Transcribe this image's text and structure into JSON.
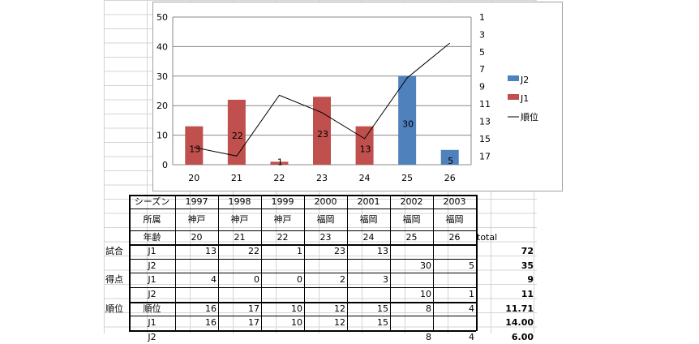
{
  "chart_data": {
    "type": "bar",
    "categories": [
      "20",
      "21",
      "22",
      "23",
      "24",
      "25",
      "26"
    ],
    "series": [
      {
        "name": "J1",
        "color": "#c0504d",
        "values": [
          13,
          22,
          1,
          23,
          13,
          null,
          null
        ],
        "labels": [
          "13",
          "22",
          "1",
          "23",
          "13",
          "",
          ""
        ]
      },
      {
        "name": "J2",
        "color": "#4f81bd",
        "values": [
          null,
          null,
          null,
          null,
          null,
          30,
          5
        ],
        "labels": [
          "",
          "",
          "",
          "",
          "",
          "30",
          "5"
        ]
      },
      {
        "name": "順位",
        "color": "#000000",
        "type": "line",
        "axis": "right",
        "values": [
          16,
          17,
          10,
          12,
          15,
          8,
          4
        ]
      }
    ],
    "ylim": [
      0,
      50
    ],
    "yticks": [
      "0",
      "10",
      "20",
      "30",
      "40",
      "50"
    ],
    "y2lim": [
      1,
      18
    ],
    "y2ticks": [
      "1",
      "3",
      "5",
      "7",
      "9",
      "11",
      "13",
      "15",
      "17"
    ],
    "legend": [
      {
        "name": "J2",
        "kind": "box",
        "color": "#4f81bd"
      },
      {
        "name": "J1",
        "kind": "box",
        "color": "#c0504d"
      },
      {
        "name": "順位",
        "kind": "line",
        "color": "#000000"
      }
    ],
    "legend_position": "right",
    "grid": true
  },
  "table": {
    "header_season": "シーズン",
    "header_club": "所属",
    "header_age": "年齢",
    "seasons": [
      "1997",
      "1998",
      "1999",
      "2000",
      "2001",
      "2002",
      "2003"
    ],
    "clubs": [
      "神戸",
      "神戸",
      "神戸",
      "福岡",
      "福岡",
      "福岡",
      "福岡"
    ],
    "ages": [
      "20",
      "21",
      "22",
      "23",
      "24",
      "25",
      "26"
    ],
    "total_label": "total",
    "rows": [
      {
        "group": "試合",
        "label": "J1",
        "cells": [
          "13",
          "22",
          "1",
          "23",
          "13",
          "",
          ""
        ],
        "total": "72"
      },
      {
        "group": "",
        "label": "J2",
        "cells": [
          "",
          "",
          "",
          "",
          "",
          "30",
          "5"
        ],
        "total": "35"
      },
      {
        "group": "得点",
        "label": "J1",
        "cells": [
          "4",
          "0",
          "0",
          "2",
          "3",
          "",
          ""
        ],
        "total": "9"
      },
      {
        "group": "",
        "label": "J2",
        "cells": [
          "",
          "",
          "",
          "",
          "",
          "10",
          "1"
        ],
        "total": "11"
      },
      {
        "group": "順位",
        "label": "順位",
        "cells": [
          "16",
          "17",
          "10",
          "12",
          "15",
          "8",
          "4"
        ],
        "total": "11.71"
      },
      {
        "group": "",
        "label": "J1",
        "cells": [
          "16",
          "17",
          "10",
          "12",
          "15",
          "",
          ""
        ],
        "total": "14.00"
      },
      {
        "group": "",
        "label": "J2",
        "cells": [
          "",
          "",
          "",
          "",
          "",
          "8",
          "4"
        ],
        "total": "6.00"
      }
    ]
  }
}
